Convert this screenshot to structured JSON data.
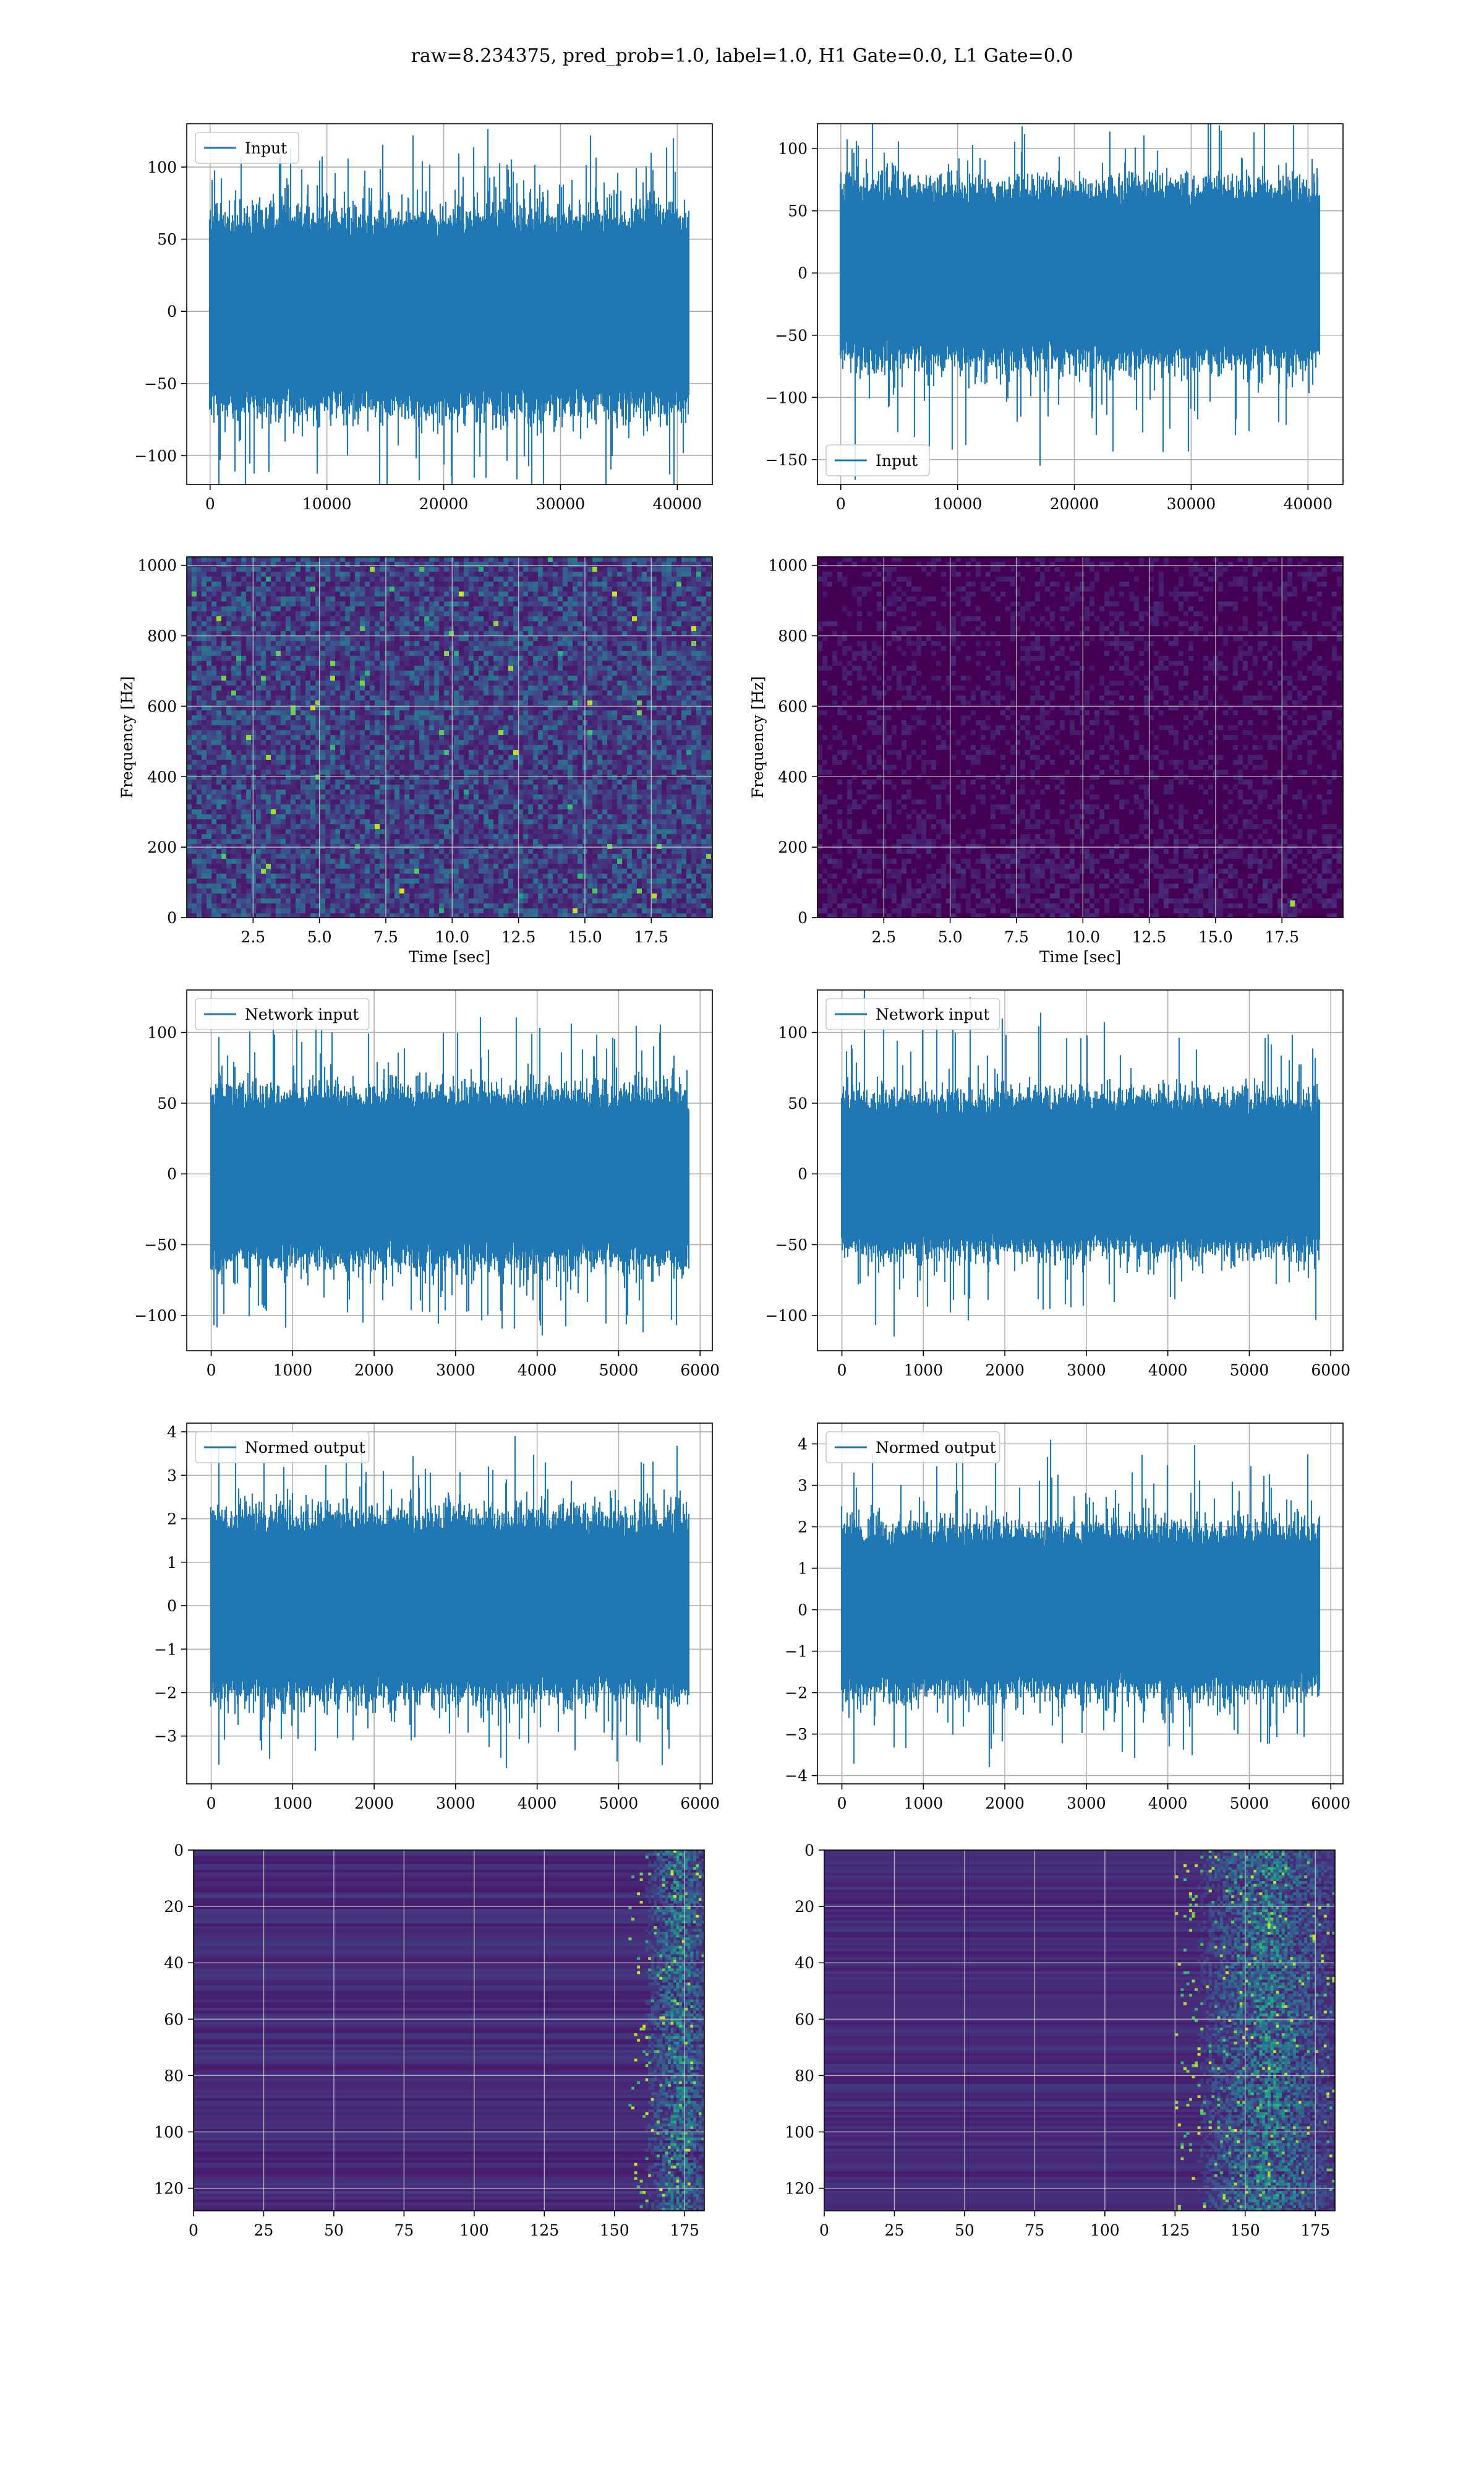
{
  "figure": {
    "title": "raw=8.234375, pred_prob=1.0, label=1.0, H1 Gate=0.0, L1 Gate=0.0"
  },
  "colors": {
    "line": "#1f77b4",
    "grid": "#b0b0b0",
    "viridis_dark": "#440154",
    "viridis_bright": "#fde725"
  },
  "chart_data": [
    {
      "type": "line",
      "legend": "Input",
      "legend_loc": "upper-left",
      "xlim": [
        -2000,
        43000
      ],
      "ylim": [
        -120,
        130
      ],
      "xticks": [
        0,
        10000,
        20000,
        30000,
        40000
      ],
      "yticks": [
        -100,
        -50,
        0,
        50,
        100
      ],
      "n_points": 40960,
      "center": 0,
      "band": 62,
      "max": 122,
      "min": -133,
      "xlabel": "",
      "ylabel": "",
      "grid": true
    },
    {
      "type": "line",
      "legend": "Input",
      "legend_loc": "lower-left",
      "xlim": [
        -2000,
        43000
      ],
      "ylim": [
        -170,
        120
      ],
      "xticks": [
        0,
        10000,
        20000,
        30000,
        40000
      ],
      "yticks": [
        -150,
        -100,
        -50,
        0,
        50,
        100
      ],
      "n_points": 40960,
      "center": 0,
      "band": 65,
      "max": 125,
      "min": -155,
      "xlabel": "",
      "ylabel": "",
      "grid": true
    },
    {
      "type": "heatmap",
      "kind": "spectrogram",
      "xlim": [
        0,
        19.8
      ],
      "ylim": [
        0,
        1024
      ],
      "xticks": [
        2.5,
        5.0,
        7.5,
        10.0,
        12.5,
        15.0,
        17.5
      ],
      "yticks": [
        0,
        200,
        400,
        600,
        800,
        1000
      ],
      "xlabel": "Time [sec]",
      "ylabel": "Frequency [Hz]",
      "intensity": "high",
      "grid": true
    },
    {
      "type": "heatmap",
      "kind": "spectrogram",
      "xlim": [
        0,
        19.8
      ],
      "ylim": [
        0,
        1024
      ],
      "xticks": [
        2.5,
        5.0,
        7.5,
        10.0,
        12.5,
        15.0,
        17.5
      ],
      "yticks": [
        0,
        200,
        400,
        600,
        800,
        1000
      ],
      "xlabel": "Time [sec]",
      "ylabel": "Frequency [Hz]",
      "intensity": "low",
      "grid": true
    },
    {
      "type": "line",
      "legend": "Network input",
      "legend_loc": "upper-left",
      "xlim": [
        -300,
        6150
      ],
      "ylim": [
        -125,
        130
      ],
      "xticks": [
        0,
        1000,
        2000,
        3000,
        4000,
        5000,
        6000
      ],
      "yticks": [
        -100,
        -50,
        0,
        50,
        100
      ],
      "n_points": 5860,
      "center": -2,
      "band": 55,
      "max": 115,
      "min": -110,
      "xlabel": "",
      "ylabel": "",
      "grid": true
    },
    {
      "type": "line",
      "legend": "Network input",
      "legend_loc": "upper-left",
      "xlim": [
        -300,
        6150
      ],
      "ylim": [
        -125,
        130
      ],
      "xticks": [
        0,
        1000,
        2000,
        3000,
        4000,
        5000,
        6000
      ],
      "yticks": [
        -100,
        -50,
        0,
        50,
        100
      ],
      "n_points": 5860,
      "center": 0,
      "band": 50,
      "max": 125,
      "min": -115,
      "xlabel": "",
      "ylabel": "",
      "grid": true
    },
    {
      "type": "line",
      "legend": "Normed output",
      "legend_loc": "upper-left",
      "xlim": [
        -300,
        6150
      ],
      "ylim": [
        -4.1,
        4.2
      ],
      "xticks": [
        0,
        1000,
        2000,
        3000,
        4000,
        5000,
        6000
      ],
      "yticks": [
        -3,
        -2,
        -1,
        0,
        1,
        2,
        3,
        4
      ],
      "n_points": 5860,
      "center": 0,
      "band": 1.9,
      "max": 3.9,
      "min": -3.5,
      "xlabel": "",
      "ylabel": "",
      "grid": true
    },
    {
      "type": "line",
      "legend": "Normed output",
      "legend_loc": "upper-left",
      "xlim": [
        -300,
        6150
      ],
      "ylim": [
        -4.2,
        4.5
      ],
      "xticks": [
        0,
        1000,
        2000,
        3000,
        4000,
        5000,
        6000
      ],
      "yticks": [
        -4,
        -3,
        -2,
        -1,
        0,
        1,
        2,
        3,
        4
      ],
      "n_points": 5860,
      "center": 0,
      "band": 1.8,
      "max": 4.1,
      "min": -3.8,
      "xlabel": "",
      "ylabel": "",
      "grid": true
    },
    {
      "type": "heatmap",
      "kind": "image",
      "xlim": [
        0,
        182
      ],
      "ylim": [
        128,
        0
      ],
      "xticks": [
        0,
        25,
        50,
        75,
        100,
        125,
        150,
        175
      ],
      "yticks": [
        0,
        20,
        40,
        60,
        80,
        100,
        120
      ],
      "xlabel": "",
      "ylabel": "",
      "hot_columns": [
        155,
        182
      ],
      "grid": true
    },
    {
      "type": "heatmap",
      "kind": "image",
      "xlim": [
        0,
        182
      ],
      "ylim": [
        128,
        0
      ],
      "xticks": [
        0,
        25,
        50,
        75,
        100,
        125,
        150,
        175
      ],
      "yticks": [
        0,
        20,
        40,
        60,
        80,
        100,
        120
      ],
      "xlabel": "",
      "ylabel": "",
      "hot_columns": [
        125,
        182
      ],
      "grid": true
    }
  ]
}
